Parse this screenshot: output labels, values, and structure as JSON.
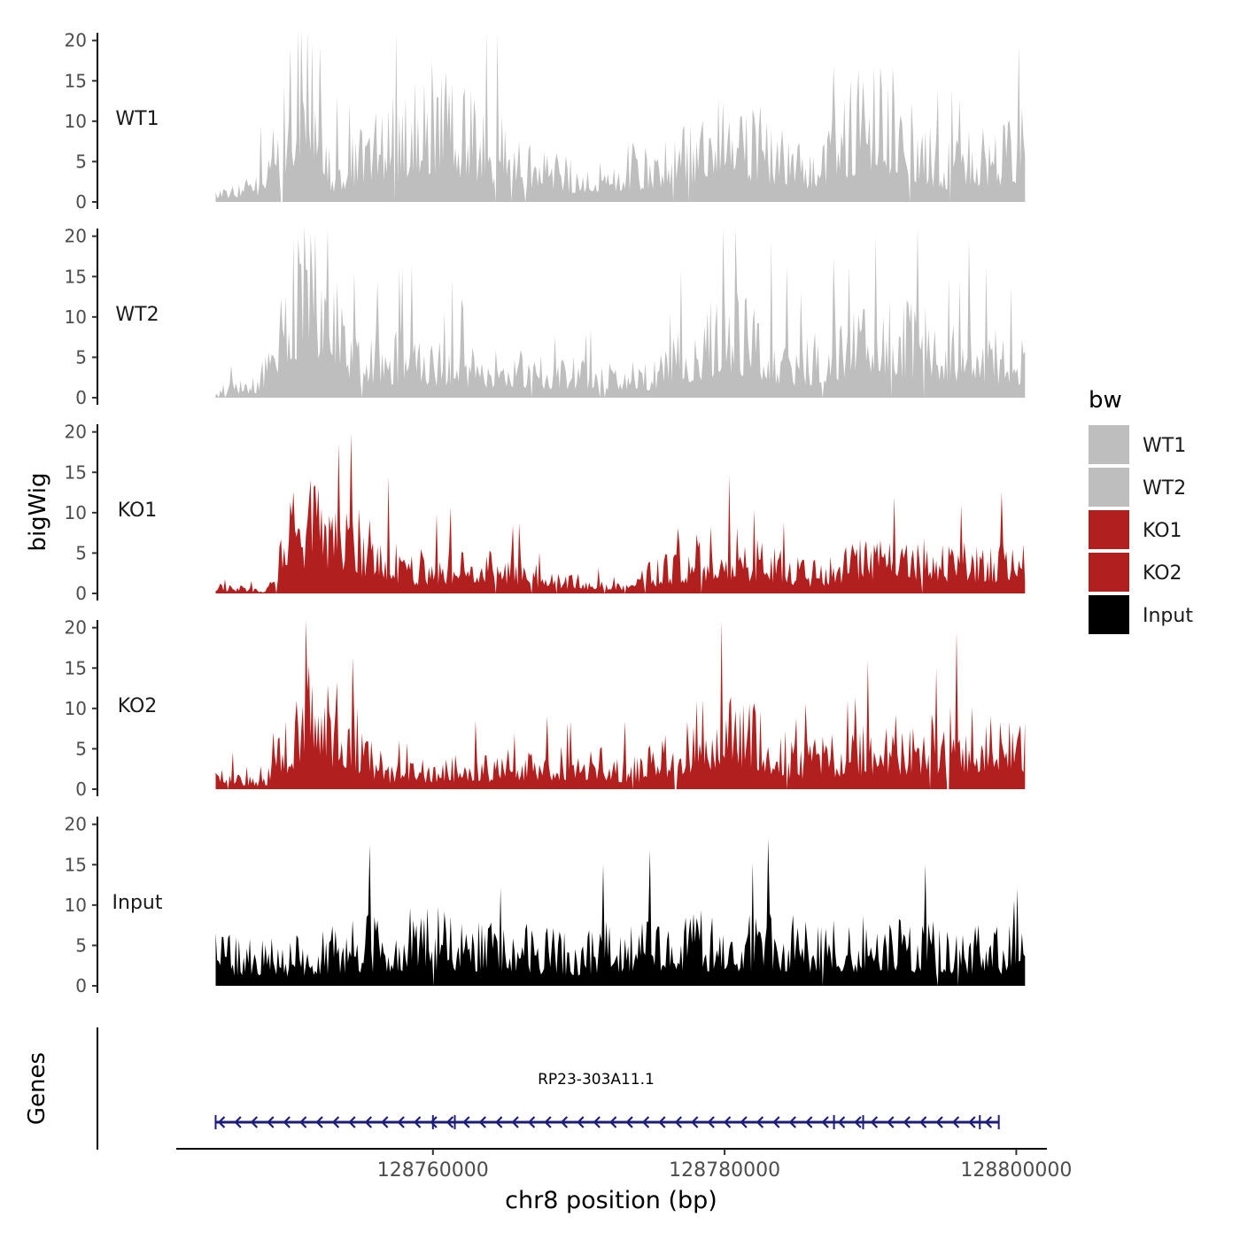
{
  "chart_data": {
    "type": "area",
    "chromosome": "chr8",
    "xlabel": "chr8 position (bp)",
    "ylabel": "bigWig",
    "xlim": [
      128742400,
      128802100
    ],
    "ylim": [
      0,
      21.5
    ],
    "x_ticks": [
      128760000,
      128780000,
      128800000
    ],
    "x_tick_labels": [
      "128760000",
      "128780000",
      "128800000"
    ],
    "y_ticks": [
      0,
      5,
      10,
      15,
      20
    ],
    "y_tick_labels": [
      "0",
      "5",
      "10",
      "15",
      "20"
    ],
    "signal_start": 128745100,
    "signal_end": 128800600,
    "legend_title": "bw",
    "legend_position": "right",
    "series": [
      {
        "name": "WT1",
        "color": "#bebebe",
        "profile": [
          {
            "x": 128745100,
            "y": 1.5
          },
          {
            "x": 128748000,
            "y": 2.5
          },
          {
            "x": 128751000,
            "y": 20.5
          },
          {
            "x": 128752200,
            "y": 19.5
          },
          {
            "x": 128753000,
            "y": 4.5
          },
          {
            "x": 128760000,
            "y": 13.5
          },
          {
            "x": 128765000,
            "y": 7.5
          },
          {
            "x": 128770000,
            "y": 4.0
          },
          {
            "x": 128777000,
            "y": 7.0
          },
          {
            "x": 128780000,
            "y": 12.5
          },
          {
            "x": 128786000,
            "y": 5.0
          },
          {
            "x": 128790000,
            "y": 15.5
          },
          {
            "x": 128795000,
            "y": 6.0
          },
          {
            "x": 128800600,
            "y": 9.0
          }
        ]
      },
      {
        "name": "WT2",
        "color": "#bebebe",
        "profile": [
          {
            "x": 128745100,
            "y": 1.5
          },
          {
            "x": 128748000,
            "y": 2.0
          },
          {
            "x": 128751000,
            "y": 18.0
          },
          {
            "x": 128752800,
            "y": 16.0
          },
          {
            "x": 128754000,
            "y": 7.0
          },
          {
            "x": 128761000,
            "y": 5.5
          },
          {
            "x": 128768000,
            "y": 4.0
          },
          {
            "x": 128775000,
            "y": 3.5
          },
          {
            "x": 128780000,
            "y": 11.0
          },
          {
            "x": 128785000,
            "y": 5.0
          },
          {
            "x": 128790000,
            "y": 10.5
          },
          {
            "x": 128795000,
            "y": 8.0
          },
          {
            "x": 128800600,
            "y": 5.5
          }
        ]
      },
      {
        "name": "KO1",
        "color": "#b21f1f",
        "profile": [
          {
            "x": 128745100,
            "y": 1.0
          },
          {
            "x": 128748500,
            "y": 0.5
          },
          {
            "x": 128751000,
            "y": 12.5
          },
          {
            "x": 128753500,
            "y": 9.5
          },
          {
            "x": 128758000,
            "y": 4.0
          },
          {
            "x": 128765000,
            "y": 4.5
          },
          {
            "x": 128768000,
            "y": 2.0
          },
          {
            "x": 128773000,
            "y": 1.5
          },
          {
            "x": 128780000,
            "y": 7.0
          },
          {
            "x": 128786000,
            "y": 3.0
          },
          {
            "x": 128790000,
            "y": 6.0
          },
          {
            "x": 128795000,
            "y": 5.0
          },
          {
            "x": 128800600,
            "y": 5.5
          }
        ]
      },
      {
        "name": "KO2",
        "color": "#b21f1f",
        "profile": [
          {
            "x": 128745100,
            "y": 2.0
          },
          {
            "x": 128748500,
            "y": 1.0
          },
          {
            "x": 128751000,
            "y": 12.0
          },
          {
            "x": 128754000,
            "y": 9.5
          },
          {
            "x": 128757000,
            "y": 2.5
          },
          {
            "x": 128764000,
            "y": 3.5
          },
          {
            "x": 128770000,
            "y": 4.5
          },
          {
            "x": 128774000,
            "y": 3.0
          },
          {
            "x": 128780000,
            "y": 10.5
          },
          {
            "x": 128785000,
            "y": 4.5
          },
          {
            "x": 128790000,
            "y": 6.5
          },
          {
            "x": 128796000,
            "y": 8.0
          },
          {
            "x": 128800600,
            "y": 7.5
          }
        ]
      },
      {
        "name": "Input",
        "color": "#000000",
        "profile": [
          {
            "x": 128745100,
            "y": 5.0
          },
          {
            "x": 128750000,
            "y": 4.5
          },
          {
            "x": 128755000,
            "y": 6.5
          },
          {
            "x": 128760000,
            "y": 7.5
          },
          {
            "x": 128765000,
            "y": 6.0
          },
          {
            "x": 128770000,
            "y": 5.0
          },
          {
            "x": 128775000,
            "y": 7.5
          },
          {
            "x": 128780000,
            "y": 7.0
          },
          {
            "x": 128785000,
            "y": 6.5
          },
          {
            "x": 128790000,
            "y": 6.5
          },
          {
            "x": 128795000,
            "y": 6.0
          },
          {
            "x": 128800600,
            "y": 5.5
          }
        ]
      }
    ],
    "genes_track": {
      "label": "Genes",
      "gene": {
        "name": "RP23-303A11.1",
        "strand": "-",
        "start": 128745100,
        "end": 128798800,
        "color": "#1c1c7a",
        "exon_marks": [
          128760000,
          128761500,
          128787500,
          128789500,
          128797500
        ]
      }
    }
  }
}
